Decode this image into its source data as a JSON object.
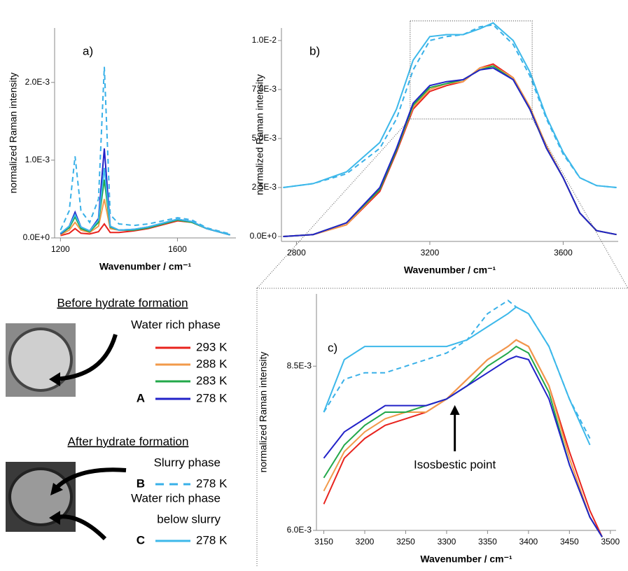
{
  "chart_data": [
    {
      "type": "line",
      "title": "a)",
      "xlabel": "Wavenumber / cm⁻¹",
      "ylabel": "normalized Raman intensity",
      "xlim": [
        1180,
        1800
      ],
      "xticks": [
        1200,
        1600
      ],
      "ylim": [
        0,
        0.0027
      ],
      "yticks": [
        {
          "value": 0,
          "label": "0.0E+0"
        },
        {
          "value": 0.001,
          "label": "1.0E-3"
        },
        {
          "value": 0.002,
          "label": "2.0E-3"
        }
      ],
      "x": [
        1200,
        1230,
        1250,
        1270,
        1300,
        1330,
        1350,
        1370,
        1400,
        1450,
        1500,
        1550,
        1600,
        1650,
        1700,
        1780
      ],
      "series": [
        {
          "name": "293 K",
          "color": "#e8231d",
          "values": [
            3e-05,
            6e-05,
            0.00012,
            6e-05,
            5e-05,
            8e-05,
            0.00018,
            7e-05,
            7e-05,
            9e-05,
            0.00012,
            0.00017,
            0.00022,
            0.0002,
            0.00012,
            4e-05
          ]
        },
        {
          "name": "288 K",
          "color": "#f29a4a",
          "values": [
            4e-05,
            0.0001,
            0.0002,
            0.0001,
            7e-05,
            0.00015,
            0.0005,
            0.00012,
            0.0001,
            0.0001,
            0.00013,
            0.00018,
            0.00023,
            0.0002,
            0.00012,
            4e-05
          ]
        },
        {
          "name": "283 K",
          "color": "#22a84a",
          "values": [
            5e-05,
            0.00013,
            0.00027,
            0.00012,
            8e-05,
            0.0002,
            0.00075,
            0.00014,
            0.0001,
            0.0001,
            0.00013,
            0.00018,
            0.00023,
            0.0002,
            0.00012,
            4e-05
          ]
        },
        {
          "name": "278 K",
          "marker": "A",
          "color": "#2222c8",
          "values": [
            5e-05,
            0.00015,
            0.00033,
            0.00014,
            9e-05,
            0.00025,
            0.00115,
            0.00015,
            0.0001,
            0.00011,
            0.00014,
            0.00019,
            0.00024,
            0.00021,
            0.00012,
            4e-05
          ]
        },
        {
          "name": "278 K",
          "marker": "B",
          "color": "#38b0e8",
          "dash": true,
          "values": [
            0.0001,
            0.00035,
            0.00105,
            0.00035,
            0.0002,
            0.0005,
            0.0022,
            0.0003,
            0.00018,
            0.00016,
            0.00018,
            0.00022,
            0.00026,
            0.00023,
            0.00013,
            5e-05
          ]
        },
        {
          "name": "278 K",
          "marker": "C",
          "color": "#3cb8ea",
          "values": [
            6e-05,
            0.00015,
            0.0003,
            0.00014,
            9e-05,
            0.00023,
            0.0009,
            0.00015,
            0.0001,
            0.00011,
            0.00014,
            0.00019,
            0.00024,
            0.00021,
            0.00012,
            4e-05
          ]
        }
      ]
    },
    {
      "type": "line",
      "title": "b)",
      "xlabel": "Wavenumber / cm⁻¹",
      "ylabel": "normalized Raman intensity",
      "xlim": [
        2755,
        3765
      ],
      "xticks": [
        2800,
        3200,
        3600
      ],
      "ylim": [
        -0.00025,
        0.01064
      ],
      "yticks": [
        {
          "value": 0,
          "label": "0.0E+0"
        },
        {
          "value": 0.0025,
          "label": "2.5E-3"
        },
        {
          "value": 0.005,
          "label": "5.0E-3"
        },
        {
          "value": 0.0075,
          "label": "7.5E-3"
        },
        {
          "value": 0.01,
          "label": "1.0E-2"
        }
      ],
      "x": [
        2760,
        2850,
        2950,
        3050,
        3100,
        3150,
        3200,
        3250,
        3300,
        3350,
        3390,
        3450,
        3500,
        3550,
        3600,
        3650,
        3700,
        3760
      ],
      "series": [
        {
          "color": "#e8231d",
          "values": [
            0,
            0.0001,
            0.0006,
            0.0023,
            0.0043,
            0.0065,
            0.0074,
            0.0077,
            0.0079,
            0.0086,
            0.0088,
            0.0081,
            0.0066,
            0.0046,
            0.003,
            0.0012,
            0.0003,
            0.0001
          ]
        },
        {
          "color": "#f29a4a",
          "values": [
            0,
            0.0001,
            0.0006,
            0.0024,
            0.0044,
            0.0066,
            0.0075,
            0.0078,
            0.0079,
            0.0086,
            0.0087,
            0.0081,
            0.0066,
            0.0046,
            0.003,
            0.0012,
            0.0003,
            0.0001
          ]
        },
        {
          "color": "#22a84a",
          "values": [
            0,
            0.0001,
            0.0007,
            0.0024,
            0.0044,
            0.0067,
            0.0076,
            0.0078,
            0.008,
            0.0085,
            0.0087,
            0.008,
            0.0065,
            0.0045,
            0.003,
            0.0012,
            0.0003,
            0.0001
          ]
        },
        {
          "color": "#2222c8",
          "values": [
            0,
            0.0001,
            0.0007,
            0.0025,
            0.0045,
            0.0068,
            0.0077,
            0.0079,
            0.008,
            0.0085,
            0.0086,
            0.008,
            0.0065,
            0.0045,
            0.003,
            0.0012,
            0.0003,
            0.0001
          ]
        },
        {
          "color": "#38b0e8",
          "dash": true,
          "values": [
            0.0025,
            0.0027,
            0.0032,
            0.0045,
            0.006,
            0.0085,
            0.01,
            0.0102,
            0.0103,
            0.0107,
            0.0108,
            0.0098,
            0.0082,
            0.006,
            0.0042,
            0.003,
            0.0026,
            0.0025
          ]
        },
        {
          "color": "#3cb8ea",
          "values": [
            0.0025,
            0.0027,
            0.0033,
            0.0048,
            0.0065,
            0.009,
            0.0102,
            0.0103,
            0.0103,
            0.0106,
            0.0109,
            0.01,
            0.0084,
            0.0061,
            0.0043,
            0.003,
            0.0026,
            0.0025
          ]
        }
      ]
    },
    {
      "type": "line",
      "title": "c)",
      "xlabel": "Wavenumber / cm⁻¹",
      "ylabel": "normalized Raman intensity",
      "xlim": [
        3141,
        3507
      ],
      "xticks": [
        3150,
        3200,
        3250,
        3300,
        3350,
        3400,
        3450,
        3500
      ],
      "ylim": [
        0.006,
        0.0096
      ],
      "yticks": [
        {
          "value": 0.006,
          "label": "6.0E-3"
        },
        {
          "value": 0.0085,
          "label": "8.5E-3"
        }
      ],
      "annotation": {
        "text": "Isosbestic point",
        "x": 3310,
        "y": 0.00795
      },
      "x": [
        3150,
        3175,
        3200,
        3225,
        3250,
        3275,
        3300,
        3325,
        3350,
        3375,
        3385,
        3400,
        3425,
        3450,
        3475,
        3490
      ],
      "series": [
        {
          "color": "#e8231d",
          "values": [
            0.0064,
            0.0071,
            0.0074,
            0.0076,
            0.0077,
            0.0078,
            0.008,
            0.0083,
            0.0086,
            0.0088,
            0.0089,
            0.0088,
            0.0082,
            0.0072,
            0.0063,
            0.0059
          ]
        },
        {
          "color": "#f29a4a",
          "values": [
            0.0066,
            0.0072,
            0.0075,
            0.0077,
            0.0078,
            0.0078,
            0.008,
            0.0083,
            0.0086,
            0.0088,
            0.0089,
            0.0088,
            0.0082,
            0.0071,
            0.0062,
            0.0059
          ]
        },
        {
          "color": "#22a84a",
          "values": [
            0.0068,
            0.0073,
            0.0076,
            0.0078,
            0.0078,
            0.0079,
            0.008,
            0.0082,
            0.0085,
            0.0087,
            0.0088,
            0.0087,
            0.0081,
            0.007,
            0.0062,
            0.0059
          ]
        },
        {
          "color": "#2222c8",
          "values": [
            0.0071,
            0.0075,
            0.0077,
            0.0079,
            0.0079,
            0.0079,
            0.008,
            0.0082,
            0.0084,
            0.0086,
            0.00865,
            0.0086,
            0.008,
            0.007,
            0.0062,
            0.0059
          ]
        },
        {
          "color": "#38b0e8",
          "dash": true,
          "values": [
            0.0078,
            0.0083,
            0.0084,
            0.0084,
            0.0085,
            0.0086,
            0.0087,
            0.0089,
            0.0093,
            0.0095,
            0.0094,
            0.0093,
            0.0088,
            0.008,
            0.0074,
            null
          ]
        },
        {
          "color": "#3cb8ea",
          "values": [
            0.0078,
            0.0086,
            0.0088,
            0.0088,
            0.0088,
            0.0088,
            0.0088,
            0.0089,
            0.0091,
            0.0093,
            0.0094,
            0.0093,
            0.0088,
            0.008,
            0.0073,
            null
          ]
        }
      ]
    }
  ],
  "legend": {
    "before": "Before hydrate formation",
    "after": "After hydrate formation",
    "phases": [
      "Water rich phase",
      "Slurry phase",
      "Water rich phase",
      "below slurry"
    ]
  }
}
